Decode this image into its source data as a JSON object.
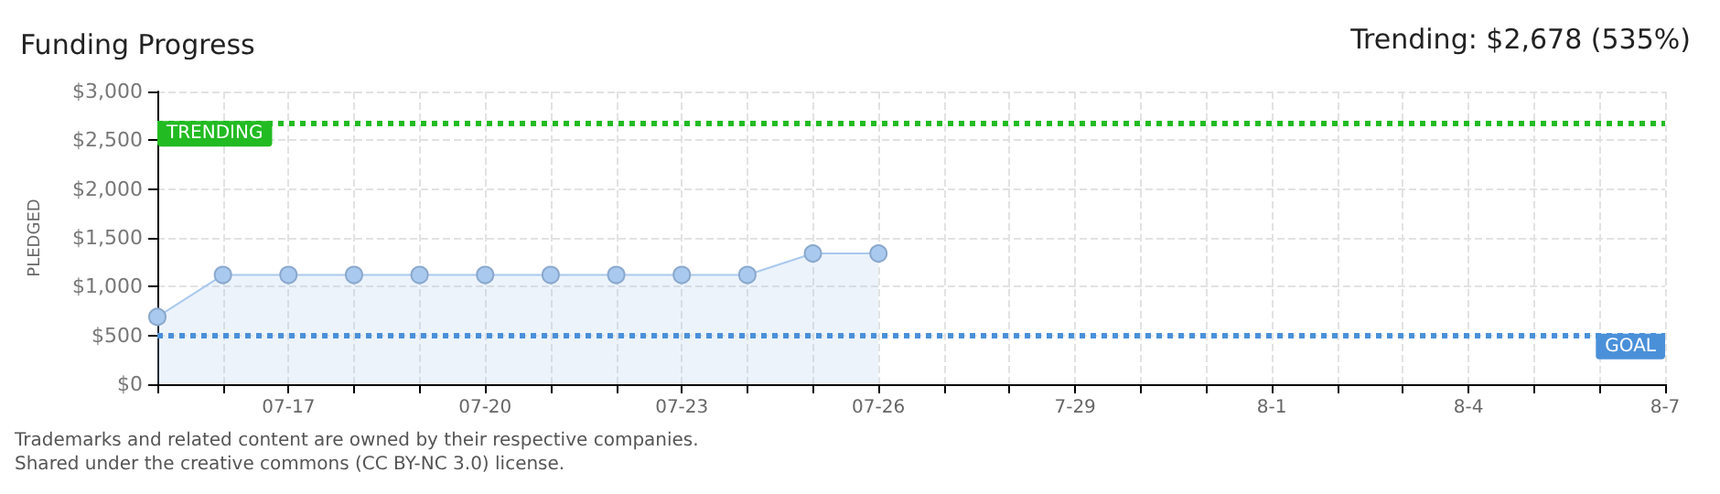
{
  "chart_data": {
    "type": "area",
    "title": "Funding Progress",
    "ylabel": "PLEDGED",
    "annotations": [
      "Trending: $2,678 (535%)",
      "Trademarks and related content are owned by their respective companies.",
      "Shared under the creative commons (CC BY-NC 3.0) license."
    ],
    "categories": [
      null,
      null,
      "07-17",
      null,
      null,
      "07-20",
      null,
      null,
      "07-23",
      null,
      null,
      "07-26",
      null,
      null,
      "7-29",
      null,
      null,
      "8-1",
      null,
      null,
      "8-4",
      null,
      null,
      "8-7"
    ],
    "series": [
      {
        "color": "#a9c9ee",
        "values": [
          690,
          1120,
          1120,
          1120,
          1120,
          1120,
          1120,
          1120,
          1120,
          1120,
          1340,
          1340,
          null,
          null,
          null,
          null,
          null,
          null,
          null,
          null,
          null,
          null,
          null,
          null
        ]
      }
    ],
    "ylim": [
      0,
      3000
    ],
    "yticks": [
      {
        "value": 0,
        "label": "$0"
      },
      {
        "value": 500,
        "label": "$500"
      },
      {
        "value": 1000,
        "label": "$1,000"
      },
      {
        "value": 1500,
        "label": "$1,500"
      },
      {
        "value": 2000,
        "label": "$2,000"
      },
      {
        "value": 2500,
        "label": "$2,500"
      },
      {
        "value": 3000,
        "label": "$3,000"
      }
    ],
    "ref_lines": [
      {
        "axis": "y",
        "value": 2678,
        "label": "TRENDING",
        "color": "#22bb22",
        "line_style": "dotted"
      },
      {
        "axis": "y",
        "value": 500,
        "label": "GOAL",
        "color": "#4a90d9",
        "line_style": "dotted"
      }
    ],
    "grid": true,
    "marker": "circle"
  }
}
